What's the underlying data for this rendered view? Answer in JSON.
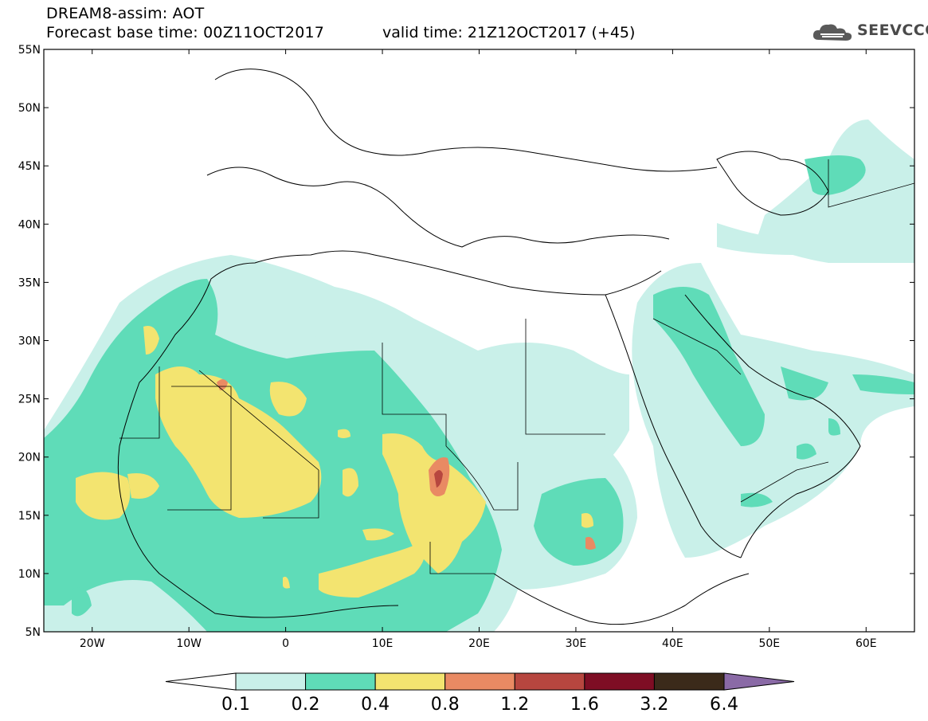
{
  "header": {
    "title_line1": "DREAM8-assim: AOT",
    "title_line2": "Forecast base time: 00Z11OCT2017",
    "valid_time": "valid time: 21Z12OCT2017 (+45)",
    "logo_text": "SEEVCCC"
  },
  "map": {
    "lat_labels": [
      "55N",
      "50N",
      "45N",
      "40N",
      "35N",
      "30N",
      "25N",
      "20N",
      "15N",
      "10N",
      "5N"
    ],
    "lon_labels": [
      "20W",
      "10W",
      "0",
      "10E",
      "20E",
      "30E",
      "40E",
      "50E",
      "60E"
    ],
    "extent": {
      "lon_min": -25,
      "lon_max": 65,
      "lat_min": 5,
      "lat_max": 55
    }
  },
  "colorbar": {
    "levels": [
      "0.1",
      "0.2",
      "0.4",
      "0.8",
      "1.2",
      "1.6",
      "3.2",
      "6.4"
    ],
    "colors": [
      "#ffffff",
      "#c9f0e9",
      "#5fdcb8",
      "#f3e470",
      "#e98a63",
      "#b7463f",
      "#7e0d24",
      "#3b2a1a",
      "#8a6aa6"
    ]
  }
}
